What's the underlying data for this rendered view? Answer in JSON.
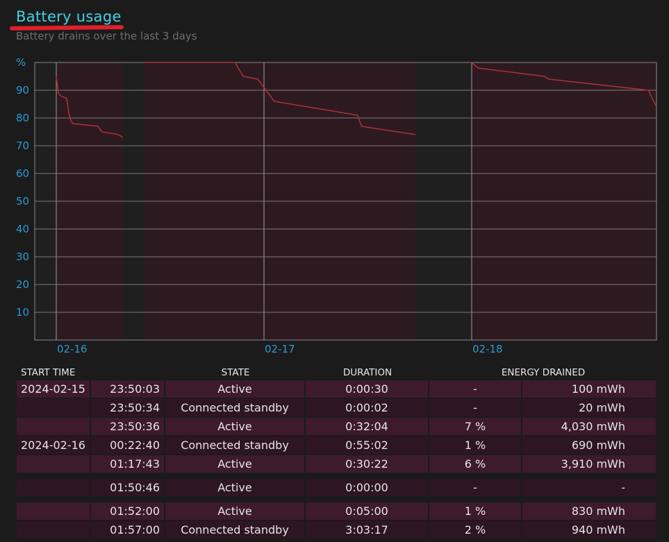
{
  "header": {
    "title": "Battery usage",
    "subtitle": "Battery drains over the last 3 days"
  },
  "chart_data": {
    "type": "line",
    "y_unit_label": "%",
    "ylim": [
      0,
      100
    ],
    "yticks": [
      10,
      20,
      30,
      40,
      50,
      60,
      70,
      80,
      90
    ],
    "x_tick_labels": [
      "02-16",
      "02-17",
      "02-18"
    ],
    "grid": true,
    "line_color": "#a8303a",
    "active_band_color": "#2d1a20",
    "series": [
      {
        "points": [
          [
            0.0,
            95
          ],
          [
            0.01,
            89
          ],
          [
            0.02,
            88
          ],
          [
            0.05,
            87
          ],
          [
            0.06,
            82
          ],
          [
            0.07,
            79
          ],
          [
            0.08,
            78
          ],
          [
            0.2,
            77
          ],
          [
            0.22,
            75
          ],
          [
            0.3,
            74
          ],
          [
            0.32,
            73
          ]
        ]
      },
      {
        "points": [
          [
            0.42,
            100
          ],
          [
            0.86,
            100
          ],
          [
            0.9,
            95
          ],
          [
            0.97,
            94
          ],
          [
            1.05,
            86
          ],
          [
            1.45,
            81
          ],
          [
            1.47,
            77
          ],
          [
            1.73,
            74
          ]
        ]
      },
      {
        "points": [
          [
            2.0,
            100
          ],
          [
            2.03,
            98
          ],
          [
            2.35,
            95
          ],
          [
            2.37,
            94
          ],
          [
            2.85,
            90
          ],
          [
            2.89,
            84
          ]
        ]
      }
    ]
  },
  "table": {
    "headers": [
      "START TIME",
      "STATE",
      "DURATION",
      "ENERGY DRAINED"
    ],
    "rows": [
      {
        "date": "2024-02-15",
        "time": "23:50:03",
        "state": "Active",
        "duration": "0:00:30",
        "pct": "-",
        "energy": "100 mWh"
      },
      {
        "date": "",
        "time": "23:50:34",
        "state": "Connected standby",
        "duration": "0:00:02",
        "pct": "-",
        "energy": "20 mWh"
      },
      {
        "date": "",
        "time": "23:50:36",
        "state": "Active",
        "duration": "0:32:04",
        "pct": "7 %",
        "energy": "4,030 mWh"
      },
      {
        "date": "2024-02-16",
        "time": "00:22:40",
        "state": "Connected standby",
        "duration": "0:55:02",
        "pct": "1 %",
        "energy": "690 mWh"
      },
      {
        "date": "",
        "time": "01:17:43",
        "state": "Active",
        "duration": "0:30:22",
        "pct": "6 %",
        "energy": "3,910 mWh"
      },
      {
        "date": "",
        "time": "01:50:46",
        "state": "Active",
        "duration": "0:00:00",
        "pct": "-",
        "energy": "-"
      },
      {
        "date": "",
        "time": "01:52:00",
        "state": "Active",
        "duration": "0:05:00",
        "pct": "1 %",
        "energy": "830 mWh"
      },
      {
        "date": "",
        "time": "01:57:00",
        "state": "Connected standby",
        "duration": "3:03:17",
        "pct": "2 %",
        "energy": "940 mWh"
      }
    ]
  }
}
